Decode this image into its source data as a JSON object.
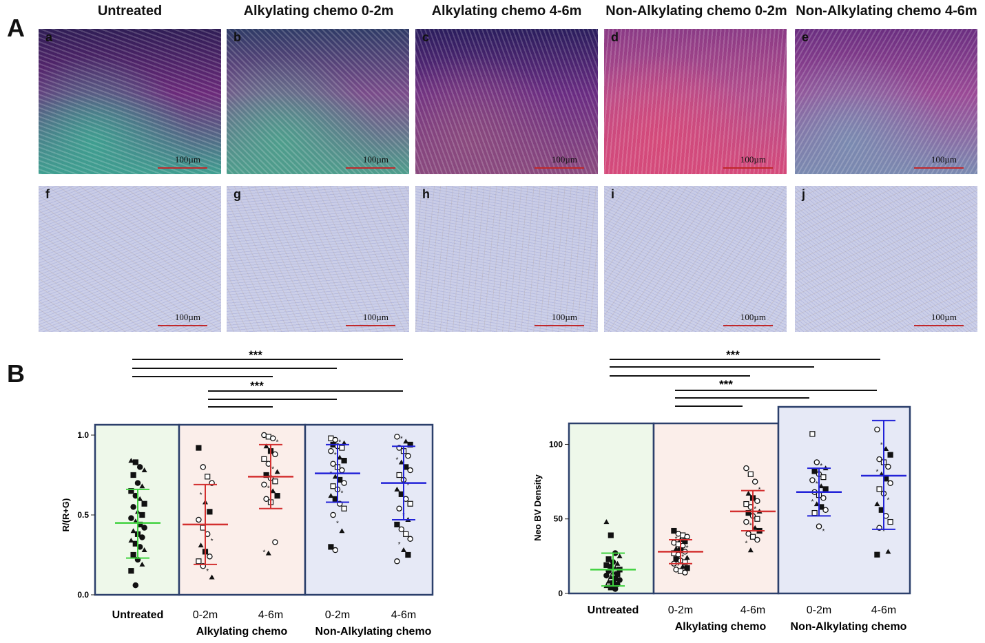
{
  "panel_labels": {
    "a": "A",
    "b": "B"
  },
  "column_titles": [
    "Untreated",
    "Alkylating chemo 0-2m",
    "Alkylating chemo 4-6m",
    "Non-Alkylating chemo 0-2m",
    "Non-Alkylating chemo 4-6m"
  ],
  "micrographs": {
    "row1": [
      {
        "label": "a",
        "scale": "100µm",
        "stain": [
          "#6b2a7a",
          "#3f9f90",
          "#2f1d55"
        ]
      },
      {
        "label": "b",
        "scale": "100µm",
        "stain": [
          "#7a4c8a",
          "#4e9e8c",
          "#2f3b66"
        ]
      },
      {
        "label": "c",
        "scale": "100µm",
        "stain": [
          "#6a2c82",
          "#8a4a7e",
          "#2a1d5c"
        ]
      },
      {
        "label": "d",
        "scale": "100µm",
        "stain": [
          "#b34d8c",
          "#d54a7a",
          "#8a3a85"
        ]
      },
      {
        "label": "e",
        "scale": "100µm",
        "stain": [
          "#9a4a96",
          "#7a8ab0",
          "#6a2e80"
        ]
      }
    ],
    "row2": [
      {
        "label": "f",
        "scale": "100µm"
      },
      {
        "label": "g",
        "scale": "100µm"
      },
      {
        "label": "h",
        "scale": "100µm"
      },
      {
        "label": "i",
        "scale": "100µm"
      },
      {
        "label": "j",
        "scale": "100µm"
      }
    ]
  },
  "colors": {
    "untreated_bg": "#eef8ea",
    "alkylating_bg": "#fbeeea",
    "nonalk_bg": "#e6e9f6",
    "green": "#3fd23f",
    "red": "#d32f2f",
    "blue": "#2222d8",
    "frame": "#2b3f6b"
  },
  "significance": "***",
  "chart_data": [
    {
      "type": "scatter",
      "title": "",
      "ylabel": "R/(R+G)",
      "ylim": [
        0,
        1.0
      ],
      "yticks": [
        "0.0",
        "0.5",
        "1.0"
      ],
      "categories": [
        "Untreated",
        "0-2m",
        "4-6m",
        "0-2m",
        "4-6m"
      ],
      "group_labels": [
        "Alkylating chemo",
        "Non-Alkylating chemo"
      ],
      "series": [
        {
          "mean": 0.45,
          "sd_low": 0.23,
          "sd_high": 0.66,
          "values": [
            0.84,
            0.83,
            0.8,
            0.78,
            0.75,
            0.7,
            0.68,
            0.65,
            0.62,
            0.6,
            0.57,
            0.55,
            0.52,
            0.5,
            0.48,
            0.46,
            0.44,
            0.42,
            0.4,
            0.38,
            0.36,
            0.34,
            0.32,
            0.3,
            0.28,
            0.25,
            0.22,
            0.19,
            0.15,
            0.06
          ]
        },
        {
          "mean": 0.44,
          "sd_low": 0.19,
          "sd_high": 0.69,
          "values": [
            0.92,
            0.8,
            0.74,
            0.7,
            0.63,
            0.58,
            0.52,
            0.47,
            0.42,
            0.38,
            0.34,
            0.31,
            0.27,
            0.24,
            0.21,
            0.18,
            0.15,
            0.11
          ]
        },
        {
          "mean": 0.74,
          "sd_low": 0.54,
          "sd_high": 0.94,
          "values": [
            1.0,
            0.99,
            0.98,
            0.96,
            0.93,
            0.9,
            0.88,
            0.85,
            0.82,
            0.79,
            0.77,
            0.75,
            0.73,
            0.71,
            0.69,
            0.67,
            0.65,
            0.62,
            0.6,
            0.58,
            0.33,
            0.27,
            0.26
          ]
        },
        {
          "mean": 0.76,
          "sd_low": 0.58,
          "sd_high": 0.94,
          "values": [
            0.98,
            0.97,
            0.96,
            0.95,
            0.94,
            0.93,
            0.92,
            0.9,
            0.88,
            0.86,
            0.84,
            0.82,
            0.8,
            0.78,
            0.76,
            0.74,
            0.72,
            0.7,
            0.68,
            0.66,
            0.64,
            0.62,
            0.6,
            0.57,
            0.54,
            0.5,
            0.45,
            0.4,
            0.3,
            0.28
          ]
        },
        {
          "mean": 0.7,
          "sd_low": 0.47,
          "sd_high": 0.93,
          "values": [
            0.99,
            0.98,
            0.96,
            0.94,
            0.92,
            0.9,
            0.87,
            0.85,
            0.83,
            0.8,
            0.78,
            0.75,
            0.72,
            0.69,
            0.66,
            0.63,
            0.6,
            0.57,
            0.54,
            0.5,
            0.47,
            0.44,
            0.41,
            0.38,
            0.35,
            0.32,
            0.28,
            0.25,
            0.21
          ]
        }
      ]
    },
    {
      "type": "scatter",
      "title": "",
      "ylabel": "Neo BV Density",
      "ylim": [
        0,
        115
      ],
      "yticks": [
        "0",
        "50",
        "100"
      ],
      "categories": [
        "Untreated",
        "0-2m",
        "4-6m",
        "0-2m",
        "4-6m"
      ],
      "group_labels": [
        "Alkylating chemo",
        "Non-Alkylating chemo"
      ],
      "series": [
        {
          "mean": 16,
          "sd_low": 5,
          "sd_high": 27,
          "values": [
            48,
            39,
            27,
            25,
            23,
            21,
            20,
            19,
            18,
            17,
            16,
            15,
            14,
            13,
            12,
            11,
            10,
            9,
            8,
            7,
            6,
            5,
            4,
            3
          ]
        },
        {
          "mean": 28,
          "sd_low": 20,
          "sd_high": 36,
          "values": [
            42,
            40,
            39,
            38,
            37,
            36,
            35,
            34,
            33,
            32,
            31,
            30,
            29,
            28,
            27,
            26,
            25,
            24,
            23,
            22,
            21,
            20,
            19,
            18,
            17,
            16,
            15,
            14
          ]
        },
        {
          "mean": 55,
          "sd_low": 42,
          "sd_high": 69,
          "values": [
            84,
            80,
            75,
            70,
            67,
            64,
            62,
            60,
            58,
            57,
            55,
            54,
            52,
            50,
            48,
            46,
            44,
            42,
            40,
            38,
            36,
            34,
            29
          ]
        },
        {
          "mean": 68,
          "sd_low": 52,
          "sd_high": 84,
          "values": [
            107,
            88,
            86,
            84,
            82,
            80,
            78,
            76,
            74,
            72,
            70,
            68,
            66,
            64,
            62,
            60,
            58,
            56,
            54,
            45,
            42
          ]
        },
        {
          "mean": 79,
          "sd_low": 43,
          "sd_high": 116,
          "values": [
            110,
            100,
            97,
            93,
            90,
            88,
            85,
            82,
            80,
            77,
            74,
            70,
            67,
            63,
            60,
            56,
            52,
            48,
            44,
            42,
            28,
            26
          ]
        }
      ]
    }
  ]
}
